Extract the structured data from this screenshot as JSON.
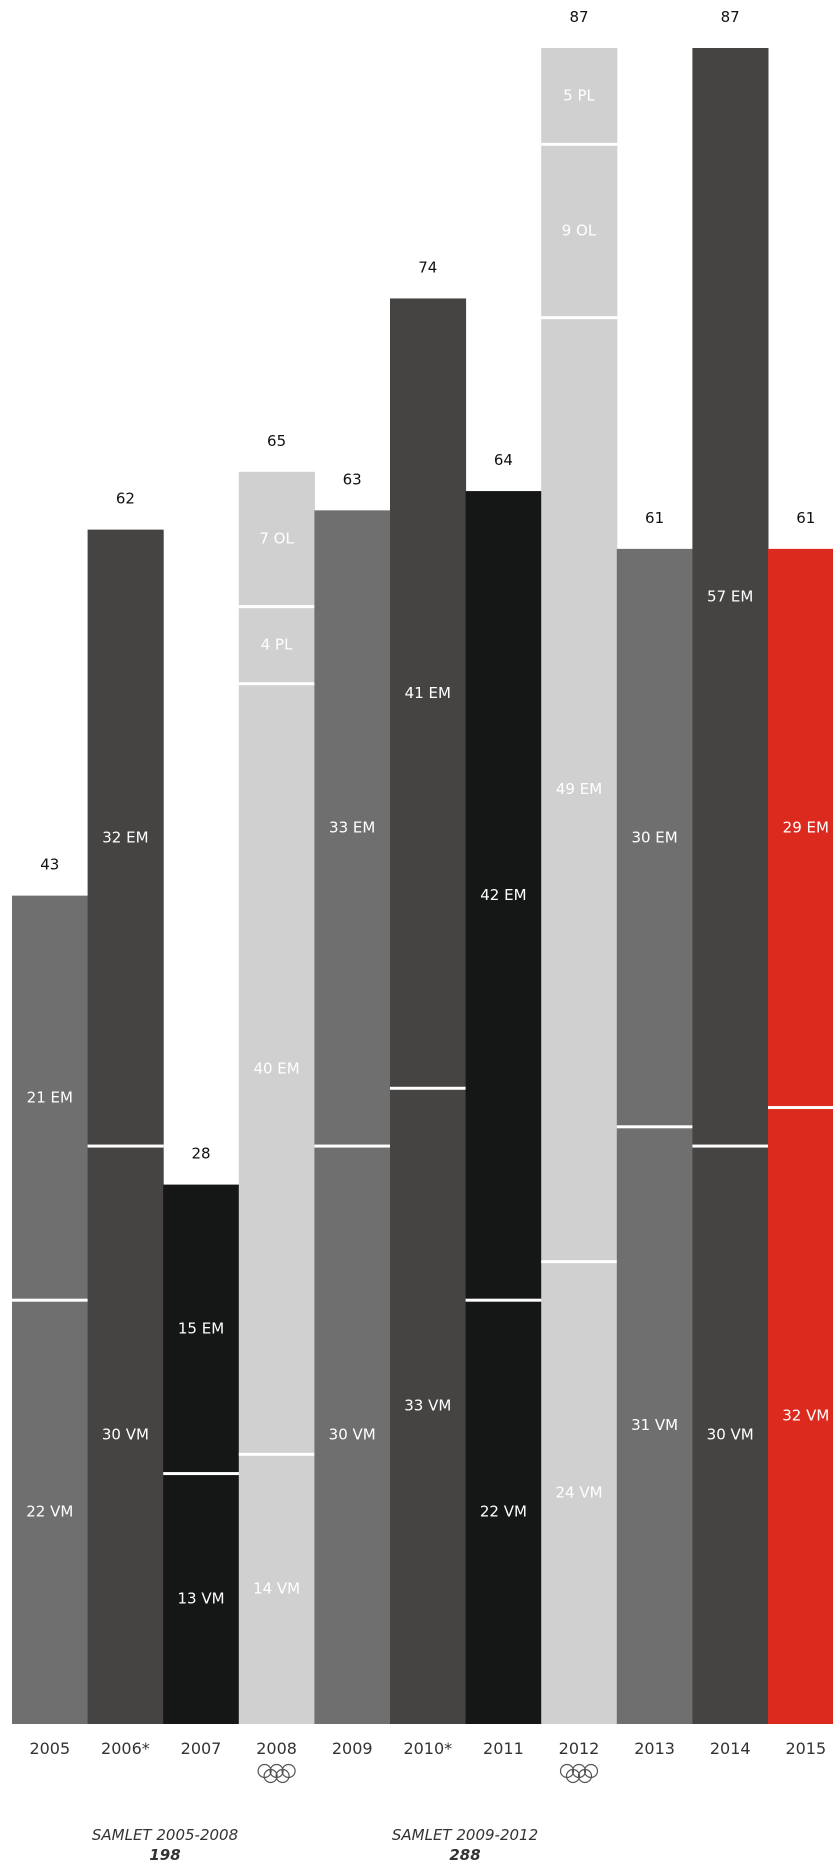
{
  "chart_data": {
    "type": "bar",
    "stacked": true,
    "categories": [
      "2005",
      "2006*",
      "2007",
      "2008",
      "2009",
      "2010*",
      "2011",
      "2012",
      "2013",
      "2014",
      "2015"
    ],
    "totals": [
      43,
      62,
      28,
      65,
      63,
      74,
      64,
      87,
      61,
      87,
      61
    ],
    "bars": [
      {
        "year": "2005",
        "total": 43,
        "color": "#6f6f6f",
        "text_color": "#ffffff",
        "olympic": false,
        "segments": [
          {
            "label": "22 VM",
            "value": 22
          },
          {
            "label": "21 EM",
            "value": 21
          }
        ]
      },
      {
        "year": "2006*",
        "total": 62,
        "color": "#454443",
        "text_color": "#ffffff",
        "olympic": false,
        "segments": [
          {
            "label": "30 VM",
            "value": 30
          },
          {
            "label": "32 EM",
            "value": 32
          }
        ]
      },
      {
        "year": "2007",
        "total": 28,
        "color": "#151716",
        "text_color": "#ffffff",
        "olympic": false,
        "segments": [
          {
            "label": "13 VM",
            "value": 13
          },
          {
            "label": "15 EM",
            "value": 15
          }
        ]
      },
      {
        "year": "2008",
        "total": 65,
        "color": "#cfd0cf",
        "text_color": "#ffffff",
        "olympic": true,
        "segments": [
          {
            "label": "14 VM",
            "value": 14
          },
          {
            "label": "40 EM",
            "value": 40
          },
          {
            "label": "4 PL",
            "value": 4
          },
          {
            "label": "7 OL",
            "value": 7
          }
        ]
      },
      {
        "year": "2009",
        "total": 63,
        "color": "#6f6f6f",
        "text_color": "#ffffff",
        "olympic": false,
        "segments": [
          {
            "label": "30 VM",
            "value": 30
          },
          {
            "label": "33 EM",
            "value": 33
          }
        ]
      },
      {
        "year": "2010*",
        "total": 74,
        "color": "#454443",
        "text_color": "#ffffff",
        "olympic": false,
        "segments": [
          {
            "label": "33 VM",
            "value": 33
          },
          {
            "label": "41 EM",
            "value": 41
          }
        ]
      },
      {
        "year": "2011",
        "total": 64,
        "color": "#151716",
        "text_color": "#ffffff",
        "olympic": false,
        "segments": [
          {
            "label": "22 VM",
            "value": 22
          },
          {
            "label": "42 EM",
            "value": 42
          }
        ]
      },
      {
        "year": "2012",
        "total": 87,
        "color": "#cfd0cf",
        "text_color": "#ffffff",
        "olympic": true,
        "segments": [
          {
            "label": "24 VM",
            "value": 24
          },
          {
            "label": "49 EM",
            "value": 49
          },
          {
            "label": "9 OL",
            "value": 9
          },
          {
            "label": "5 PL",
            "value": 5
          }
        ]
      },
      {
        "year": "2013",
        "total": 61,
        "color": "#6f6f6f",
        "text_color": "#ffffff",
        "olympic": false,
        "segments": [
          {
            "label": "31 VM",
            "value": 31
          },
          {
            "label": "30 EM",
            "value": 30
          }
        ]
      },
      {
        "year": "2014",
        "total": 87,
        "color": "#454443",
        "text_color": "#ffffff",
        "olympic": false,
        "segments": [
          {
            "label": "30 VM",
            "value": 30
          },
          {
            "label": "57 EM",
            "value": 57
          }
        ]
      },
      {
        "year": "2015",
        "total": 61,
        "color": "#dc2b1e",
        "text_color": "#ffffff",
        "olympic": false,
        "segments": [
          {
            "label": "32 VM",
            "value": 32
          },
          {
            "label": "29 EM",
            "value": 29
          }
        ]
      }
    ],
    "ylim": [
      0,
      87
    ],
    "grid": false,
    "legend": "none"
  },
  "summaries": [
    {
      "label": "SAMLET 2005-2008",
      "value": "198"
    },
    {
      "label": "SAMLET 2009-2012",
      "value": "288"
    }
  ],
  "icons": {
    "olympic": "olympic-rings-icon"
  }
}
